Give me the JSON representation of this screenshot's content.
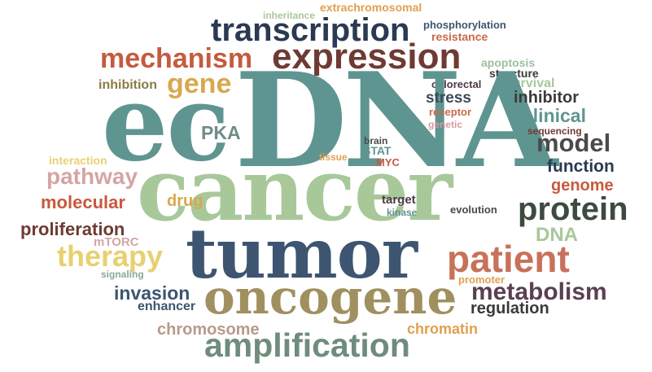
{
  "words": [
    {
      "text": "extrachromosomal",
      "color": "#e0a050"
    },
    {
      "text": "inheritance",
      "color": "#a8c89a"
    },
    {
      "text": "transcription",
      "color": "#2b3a52"
    },
    {
      "text": "phosphorylation",
      "color": "#3d5570"
    },
    {
      "text": "resistance",
      "color": "#c96a4a"
    },
    {
      "text": "mechanism",
      "color": "#c65a3e"
    },
    {
      "text": "expression",
      "color": "#6e3a33"
    },
    {
      "text": "apoptosis",
      "color": "#9bc0a0"
    },
    {
      "text": "structure",
      "color": "#3a3a3a"
    },
    {
      "text": "inhibition",
      "color": "#8a7a44"
    },
    {
      "text": "gene",
      "color": "#d9a84e"
    },
    {
      "text": "colorectal",
      "color": "#4e3a44"
    },
    {
      "text": "survival",
      "color": "#a8c89a"
    },
    {
      "text": "ec",
      "color": "#5f9591"
    },
    {
      "text": "DNA",
      "color": "#5f9591"
    },
    {
      "text": "stress",
      "color": "#3d4a5a"
    },
    {
      "text": "inhibitor",
      "color": "#3a3a3a"
    },
    {
      "text": "receptor",
      "color": "#c96a4a"
    },
    {
      "text": "clinical",
      "color": "#5f9591"
    },
    {
      "text": "genetic",
      "color": "#d99aa0"
    },
    {
      "text": "sequencing",
      "color": "#6e3a33"
    },
    {
      "text": "PKA",
      "color": "#6f8c86"
    },
    {
      "text": "model",
      "color": "#4a4a4a"
    },
    {
      "text": "brain",
      "color": "#4a4a4a"
    },
    {
      "text": "STAT",
      "color": "#5f9591"
    },
    {
      "text": "MYC",
      "color": "#c65a3e"
    },
    {
      "text": "tissue",
      "color": "#e0a050"
    },
    {
      "text": "interaction",
      "color": "#e8d070"
    },
    {
      "text": "function",
      "color": "#2b3a52"
    },
    {
      "text": "pathway",
      "color": "#d4a5a5"
    },
    {
      "text": "genome",
      "color": "#c65a3e"
    },
    {
      "text": "cancer",
      "color": "#a8c89a"
    },
    {
      "text": "molecular",
      "color": "#c65a3e"
    },
    {
      "text": "drug",
      "color": "#d9a84e"
    },
    {
      "text": "target",
      "color": "#4e3a44"
    },
    {
      "text": "kinase",
      "color": "#5f9591"
    },
    {
      "text": "evolution",
      "color": "#4a4a4a"
    },
    {
      "text": "protein",
      "color": "#3d4a3f"
    },
    {
      "text": "DNA",
      "color": "#a8c89a"
    },
    {
      "text": "proliferation",
      "color": "#6e3a33"
    },
    {
      "text": "mTORC",
      "color": "#d4a5a5"
    },
    {
      "text": "therapy",
      "color": "#e8d070"
    },
    {
      "text": "tumor",
      "color": "#3d5570"
    },
    {
      "text": "patient",
      "color": "#c8715a"
    },
    {
      "text": "signaling",
      "color": "#8aa89a"
    },
    {
      "text": "promoter",
      "color": "#e0a050"
    },
    {
      "text": "invasion",
      "color": "#3d5570"
    },
    {
      "text": "metabolism",
      "color": "#5a4050"
    },
    {
      "text": "oncogene",
      "color": "#a09060"
    },
    {
      "text": "enhancer",
      "color": "#3d5570"
    },
    {
      "text": "regulation",
      "color": "#3a3a3a"
    },
    {
      "text": "chromosome",
      "color": "#b89a8a"
    },
    {
      "text": "chromatin",
      "color": "#e0a050"
    },
    {
      "text": "amplification",
      "color": "#6f8c7c"
    }
  ]
}
